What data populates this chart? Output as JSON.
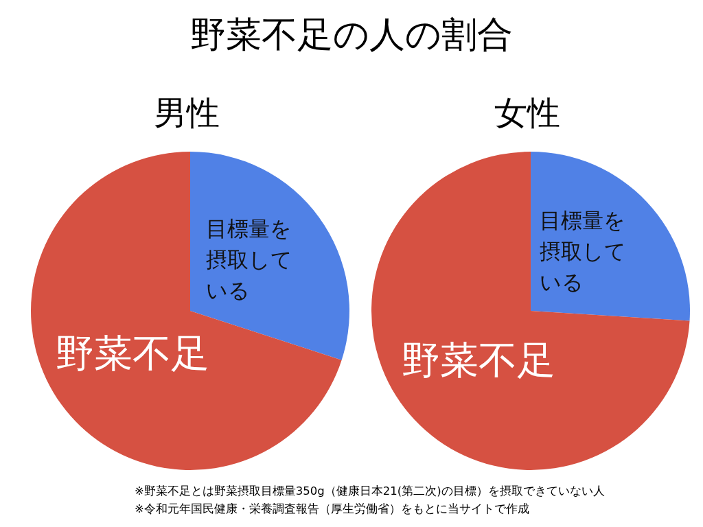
{
  "chart_data": [
    {
      "type": "pie",
      "title": "男性",
      "annotations": [
        "野菜不足の人の割合"
      ],
      "categories": [
        "目標量を摂取している",
        "野菜不足"
      ],
      "values": [
        30,
        70
      ],
      "colors": [
        "#5081e6",
        "#d65142"
      ]
    },
    {
      "type": "pie",
      "title": "女性",
      "annotations": [
        "※野菜不足とは野菜摂取目標量350g（健康日本21(第二次)の目標）を摂取できていない人",
        "※令和元年国民健康・栄養調査報告（厚生労働省）をもとに当サイトで作成"
      ],
      "categories": [
        "目標量を摂取している",
        "野菜不足"
      ],
      "values": [
        26,
        74
      ],
      "colors": [
        "#5081e6",
        "#d65142"
      ]
    }
  ]
}
